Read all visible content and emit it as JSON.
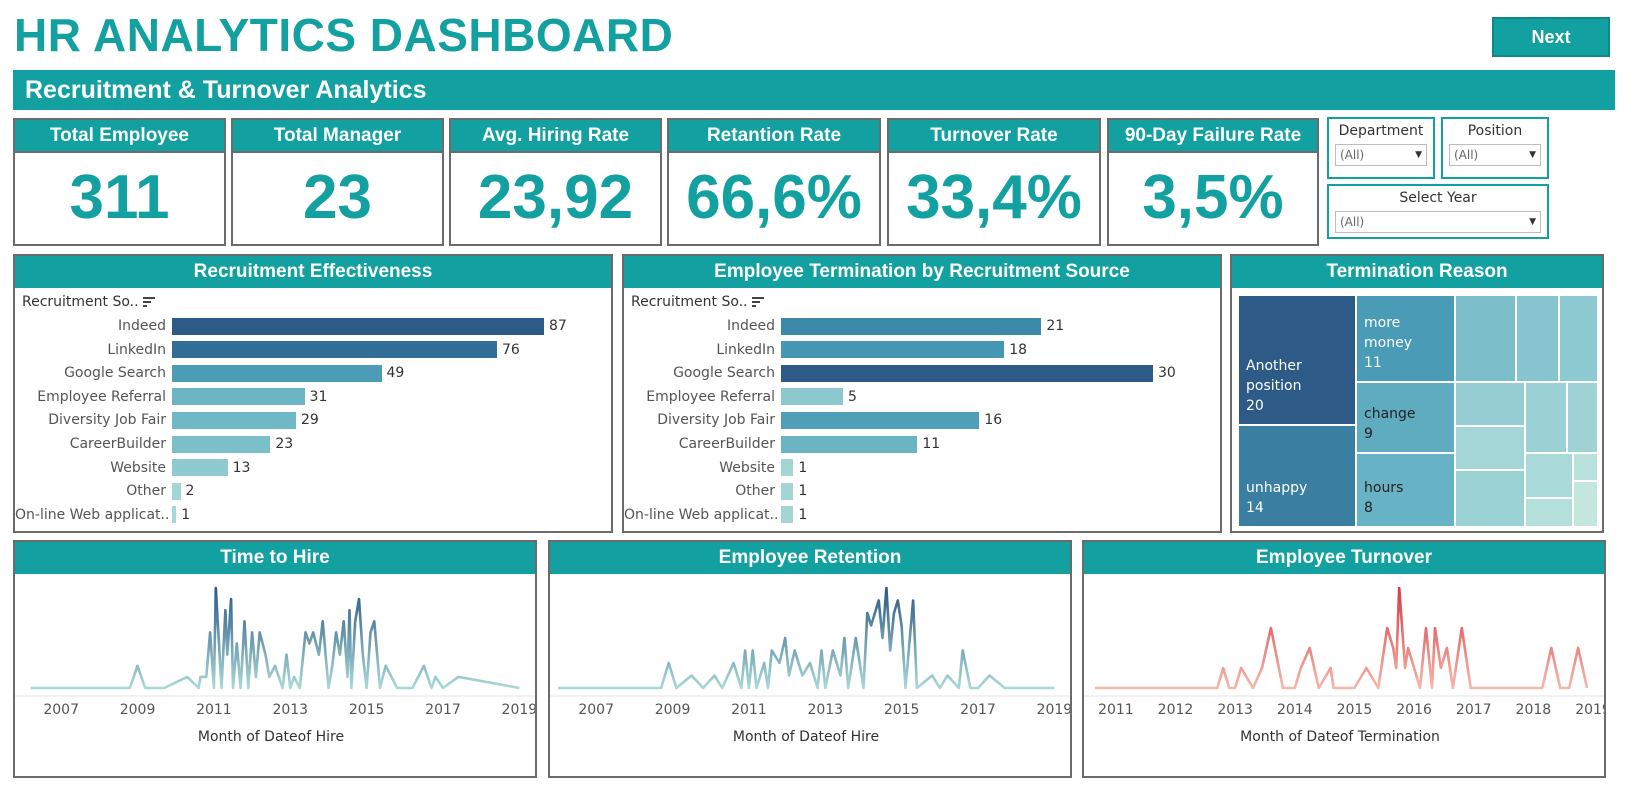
{
  "header": {
    "title": "HR ANALYTICS DASHBOARD",
    "next_label": "Next",
    "section_title": "Recruitment & Turnover Analytics"
  },
  "kpis": [
    {
      "label": "Total Employee",
      "value": "311"
    },
    {
      "label": "Total Manager",
      "value": "23"
    },
    {
      "label": "Avg. Hiring Rate",
      "value": "23,92"
    },
    {
      "label": "Retantion Rate",
      "value": "66,6%"
    },
    {
      "label": "Turnover Rate",
      "value": "33,4%"
    },
    {
      "label": "90-Day Failure Rate",
      "value": "3,5%"
    }
  ],
  "filters": {
    "department": {
      "label": "Department",
      "value": "(All)"
    },
    "position": {
      "label": "Position",
      "value": "(All)"
    },
    "year": {
      "label": "Select Year",
      "value": "(All)"
    }
  },
  "colors": {
    "accent": "#12a0a0",
    "bar_dark": "#2d5a87",
    "bar_mid": "#3c8fae",
    "bar_light": "#6fb8c6",
    "bar_pale": "#a8d8d6",
    "turnover_red": "#d63a48",
    "turnover_pale": "#f5b7a8"
  },
  "panels": {
    "recruitment_effectiveness": {
      "title": "Recruitment Effectiveness",
      "field_label": "Recruitment So..",
      "sort_icon": "sort-descending-icon"
    },
    "termination_by_source": {
      "title": "Employee Termination by Recruitment Source",
      "field_label": "Recruitment So..",
      "sort_icon": "sort-descending-icon"
    },
    "termination_reason": {
      "title": "Termination Reason",
      "cells": [
        {
          "label": "Another position",
          "value": "20"
        },
        {
          "label": "unhappy",
          "value": "14"
        },
        {
          "label": "more money",
          "value": "11"
        },
        {
          "label": "change",
          "value": "9"
        },
        {
          "label": "hours",
          "value": "8"
        }
      ]
    },
    "time_to_hire": {
      "title": "Time to Hire",
      "xlabel": "Month of Dateof Hire"
    },
    "employee_retention": {
      "title": "Employee Retention",
      "xlabel": "Month of Dateof Hire"
    },
    "employee_turnover": {
      "title": "Employee Turnover",
      "xlabel": "Month of Dateof Termination"
    }
  },
  "chart_data": [
    {
      "type": "bar",
      "orientation": "horizontal",
      "title": "Recruitment Effectiveness",
      "categories": [
        "Indeed",
        "LinkedIn",
        "Google Search",
        "Employee Referral",
        "Diversity Job Fair",
        "CareerBuilder",
        "Website",
        "Other",
        "On-line Web applicat.."
      ],
      "values": [
        87,
        76,
        49,
        31,
        29,
        23,
        13,
        2,
        1
      ]
    },
    {
      "type": "bar",
      "orientation": "horizontal",
      "title": "Employee Termination by Recruitment Source",
      "categories": [
        "Indeed",
        "LinkedIn",
        "Google Search",
        "Employee Referral",
        "Diversity Job Fair",
        "CareerBuilder",
        "Website",
        "Other",
        "On-line Web applicat.."
      ],
      "values": [
        21,
        18,
        30,
        5,
        16,
        11,
        1,
        1,
        1
      ]
    },
    {
      "type": "line",
      "title": "Time to Hire",
      "xlabel": "Month of Dateof Hire",
      "xticks": [
        "2007",
        "2009",
        "2011",
        "2013",
        "2015",
        "2017",
        "2019"
      ],
      "xlim": [
        2006.0,
        2019.2
      ],
      "ylim": [
        0,
        9
      ],
      "x": [
        2006.2,
        2008.8,
        2009.0,
        2009.2,
        2009.7,
        2010.3,
        2010.6,
        2010.65,
        2010.8,
        2010.9,
        2011.0,
        2011.05,
        2011.1,
        2011.2,
        2011.3,
        2011.35,
        2011.45,
        2011.5,
        2011.6,
        2011.7,
        2011.8,
        2011.9,
        2012.0,
        2012.1,
        2012.2,
        2012.35,
        2012.45,
        2012.6,
        2012.8,
        2012.9,
        2013.0,
        2013.1,
        2013.25,
        2013.4,
        2013.5,
        2013.6,
        2013.75,
        2013.85,
        2014.0,
        2014.1,
        2014.2,
        2014.3,
        2014.4,
        2014.5,
        2014.55,
        2014.6,
        2014.7,
        2014.8,
        2014.9,
        2015.0,
        2015.1,
        2015.2,
        2015.35,
        2015.5,
        2015.8,
        2016.0,
        2016.2,
        2016.5,
        2016.7,
        2016.8,
        2017.0,
        2017.4,
        2019.0
      ],
      "y": [
        0,
        0,
        2,
        0,
        0,
        1,
        0,
        1,
        1,
        5,
        0,
        9,
        6,
        0,
        7,
        3,
        8,
        0,
        4,
        0,
        6,
        0,
        5,
        1,
        5,
        3,
        1,
        2,
        0,
        3,
        0,
        1,
        0,
        5,
        4,
        5,
        3,
        6,
        0,
        2,
        5,
        3,
        6,
        1,
        7,
        0,
        6,
        8,
        3,
        0,
        5,
        6,
        0,
        2,
        0,
        0,
        0,
        2,
        0,
        1,
        0,
        1,
        0
      ]
    },
    {
      "type": "line",
      "title": "Employee Retention",
      "xlabel": "Month of Dateof Hire",
      "xticks": [
        "2007",
        "2009",
        "2011",
        "2013",
        "2015",
        "2017",
        "2019"
      ],
      "xlim": [
        2006.0,
        2019.2
      ],
      "ylim": [
        0,
        8
      ],
      "x": [
        2006.0,
        2008.7,
        2008.9,
        2009.1,
        2009.5,
        2009.8,
        2010.1,
        2010.3,
        2010.6,
        2010.8,
        2010.9,
        2011.0,
        2011.1,
        2011.2,
        2011.4,
        2011.5,
        2011.6,
        2011.8,
        2011.95,
        2012.05,
        2012.2,
        2012.4,
        2012.6,
        2012.8,
        2012.9,
        2013.0,
        2013.2,
        2013.4,
        2013.5,
        2013.6,
        2013.8,
        2014.0,
        2014.1,
        2014.2,
        2014.4,
        2014.5,
        2014.6,
        2014.7,
        2014.8,
        2014.9,
        2015.0,
        2015.1,
        2015.3,
        2015.4,
        2015.8,
        2016.0,
        2016.2,
        2016.5,
        2016.6,
        2016.8,
        2017.0,
        2017.3,
        2017.7,
        2019.0
      ],
      "y": [
        0,
        0,
        2,
        0,
        1,
        0,
        1,
        0,
        2,
        0,
        3,
        0,
        3,
        0,
        2,
        0,
        3,
        2,
        4,
        1,
        3,
        1,
        2,
        0,
        3,
        0,
        3,
        1,
        4,
        0,
        4,
        0,
        6,
        5,
        7,
        4,
        8,
        3,
        6,
        7,
        5,
        0,
        7,
        0,
        1,
        0,
        1,
        0,
        3,
        0,
        0,
        1,
        0,
        0
      ]
    },
    {
      "type": "line",
      "title": "Employee Turnover",
      "xlabel": "Month of Dateof Termination",
      "xticks": [
        "2011",
        "2012",
        "2013",
        "2014",
        "2015",
        "2016",
        "2017",
        "2018",
        "2019"
      ],
      "xlim": [
        2010.6,
        2019.05
      ],
      "ylim": [
        0,
        5
      ],
      "x": [
        2010.65,
        2012.7,
        2012.8,
        2012.9,
        2013.0,
        2013.1,
        2013.3,
        2013.45,
        2013.6,
        2013.8,
        2014.0,
        2014.1,
        2014.25,
        2014.4,
        2014.6,
        2014.65,
        2014.8,
        2015.0,
        2015.2,
        2015.4,
        2015.55,
        2015.65,
        2015.7,
        2015.75,
        2015.85,
        2015.9,
        2016.0,
        2016.1,
        2016.2,
        2016.3,
        2016.35,
        2016.45,
        2016.55,
        2016.65,
        2016.8,
        2016.95,
        2017.1,
        2018.0,
        2018.15,
        2018.3,
        2018.45,
        2018.6,
        2018.75,
        2018.9
      ],
      "y": [
        0,
        0,
        1,
        0,
        0,
        1,
        0,
        1,
        3,
        0,
        0,
        1,
        2,
        0,
        1,
        0,
        0,
        0,
        1,
        0,
        3,
        2,
        1,
        5,
        1,
        2,
        1,
        0,
        3,
        0,
        3,
        1,
        2,
        0,
        3,
        0,
        0,
        0,
        0,
        2,
        0,
        0,
        2,
        0
      ]
    }
  ]
}
